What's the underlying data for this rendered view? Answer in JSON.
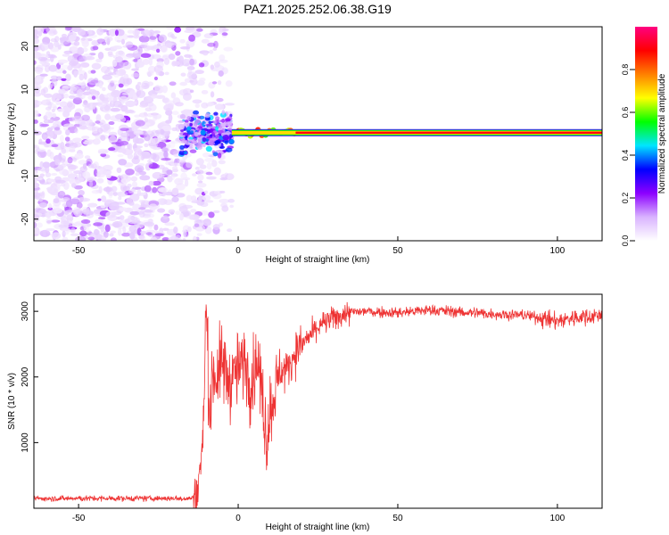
{
  "title": "PAZ1.2025.252.06.38.G19",
  "chart_data": [
    {
      "type": "heatmap",
      "name": "spectrogram",
      "xlabel": "Height of straight line (km)",
      "ylabel": "Frequency (Hz)",
      "xlim": [
        -64,
        114
      ],
      "ylim": [
        -25,
        24.5
      ],
      "xticks": [
        -50,
        0,
        50,
        100
      ],
      "yticks": [
        -20,
        -10,
        0,
        10,
        20
      ],
      "carrier_frequency_hz": 0,
      "colorbar": {
        "label": "Normalized spectral amplitude",
        "range": [
          0,
          1
        ],
        "ticks": [
          0.0,
          0.2,
          0.4,
          0.6,
          0.8
        ],
        "colors": [
          "#ffffff",
          "#d9b3ff",
          "#8c00ff",
          "#0000ff",
          "#00e5ff",
          "#00ff00",
          "#ffff00",
          "#ff8000",
          "#ff0000",
          "#ff0080"
        ]
      }
    },
    {
      "type": "line",
      "name": "snr",
      "xlabel": "Height of straight line (km)",
      "ylabel": "SNR (10 * v/v)",
      "xlim": [
        -64,
        114
      ],
      "ylim": [
        0,
        3260
      ],
      "xticks": [
        -50,
        0,
        50,
        100
      ],
      "yticks": [
        1000,
        2000,
        3000
      ],
      "color": "#ee3333",
      "profile": {
        "x": [
          -64,
          -15,
          -13,
          -11,
          -10,
          -9,
          -8,
          -7,
          -5,
          -3,
          0,
          2,
          4,
          6,
          8,
          9,
          10,
          11,
          13,
          15,
          18,
          22,
          26,
          30,
          35,
          40,
          50,
          60,
          70,
          80,
          90,
          100,
          105,
          110,
          114
        ],
        "y": [
          150,
          150,
          200,
          1050,
          3200,
          1400,
          2100,
          2000,
          2200,
          1950,
          2100,
          2250,
          1900,
          2300,
          1500,
          1050,
          1500,
          1700,
          2100,
          2100,
          2400,
          2600,
          2800,
          2900,
          2980,
          3000,
          2980,
          3020,
          2990,
          2960,
          2940,
          2850,
          2900,
          2920,
          2950
        ]
      }
    }
  ]
}
